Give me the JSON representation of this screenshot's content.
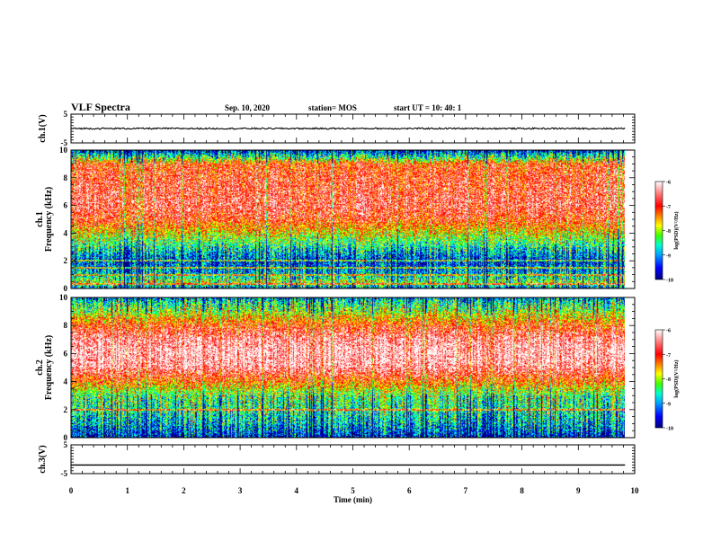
{
  "header": {
    "title": "VLF Spectra",
    "date": "Sep. 10, 2020",
    "station": "station= MOS",
    "start_ut": "start  UT  =   10: 40: 1"
  },
  "chart_data": [
    {
      "type": "line",
      "name": "ch1-waveform",
      "ylabel": "ch.1(V)",
      "ylim": [
        -5,
        5
      ],
      "yticks": [
        "5",
        "-5"
      ],
      "xlim": [
        0,
        10
      ],
      "level": 0,
      "grid": false
    },
    {
      "type": "heatmap",
      "name": "ch1-spectrogram",
      "ylabel": "ch.1\nFrequency (kHz)",
      "ylim": [
        0,
        10
      ],
      "yticks": [
        "0",
        "2",
        "4",
        "6",
        "8",
        "10"
      ],
      "xlim": [
        0,
        10
      ],
      "zlim": [
        -10,
        -6
      ],
      "colorbar_label": "log(PSD)(V²/Hz)",
      "colorbar_ticks": [
        "-6",
        "-7",
        "-8",
        "-9",
        "-10"
      ],
      "profile_freq_khz": [
        0,
        0.5,
        1,
        2,
        3,
        4,
        5,
        6,
        7,
        8,
        9,
        9.5,
        10
      ],
      "profile_level": [
        -9.3,
        -8.2,
        -9.0,
        -9.5,
        -8.7,
        -7.9,
        -7.1,
        -6.8,
        -6.9,
        -7.0,
        -7.2,
        -8.6,
        -9.6
      ],
      "bands_khz": [
        0.3,
        1.0,
        1.5,
        2.0
      ]
    },
    {
      "type": "heatmap",
      "name": "ch2-spectrogram",
      "ylabel": "ch.2\nFrequency (kHz)",
      "ylim": [
        0,
        10
      ],
      "yticks": [
        "0",
        "2",
        "4",
        "6",
        "8",
        "10"
      ],
      "xlim": [
        0,
        10
      ],
      "zlim": [
        -10,
        -6
      ],
      "colorbar_label": "log(PSD)(V²/Hz)",
      "colorbar_ticks": [
        "-6",
        "-7",
        "-8",
        "-9",
        "-10"
      ],
      "profile_freq_khz": [
        0,
        1,
        2,
        3,
        4,
        5,
        6,
        7,
        8,
        8.8,
        9.5,
        10
      ],
      "profile_level": [
        -9.6,
        -9.0,
        -8.6,
        -8.4,
        -7.4,
        -6.5,
        -6.3,
        -6.5,
        -7.2,
        -8.0,
        -8.5,
        -9.2
      ],
      "bands_khz": [
        2.0
      ]
    },
    {
      "type": "line",
      "name": "ch3-waveform",
      "ylabel": "ch.3(V)",
      "ylim": [
        -5,
        5
      ],
      "yticks": [
        "5",
        "-5"
      ],
      "xlim": [
        0,
        10
      ],
      "level": -2,
      "grid": false
    }
  ],
  "xaxis": {
    "label": "Time (min)",
    "ticks": [
      "0",
      "1",
      "2",
      "3",
      "4",
      "5",
      "6",
      "7",
      "8",
      "9",
      "10"
    ],
    "xmax_data": 9.83
  },
  "colormap": [
    "#000080",
    "#0000ff",
    "#0080ff",
    "#00ffff",
    "#00ff80",
    "#40ff00",
    "#ffff00",
    "#ffa000",
    "#ff4000",
    "#ff0000",
    "#ff6060",
    "#ffc0c0",
    "#ffffff"
  ]
}
